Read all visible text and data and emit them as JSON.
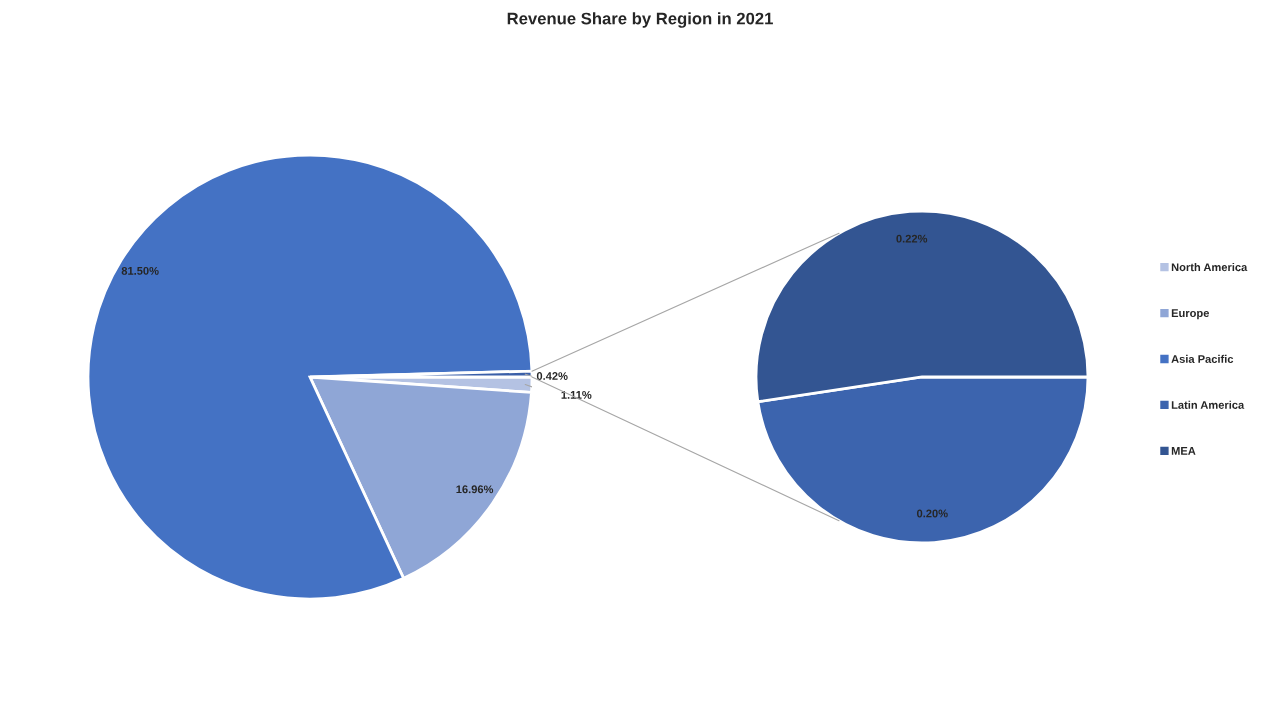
{
  "chart_data": [
    {
      "type": "pie",
      "title": "Revenue Share by Region in 2021",
      "categories": [
        "North America",
        "Europe",
        "Asia Pacific",
        null
      ],
      "values": [
        1.11,
        16.96,
        81.5,
        0.42
      ],
      "colors": [
        "#b4c2e3",
        "#8fa6d6",
        "#4472c4",
        "#3a5fa8"
      ],
      "value_labels": [
        "1.11%",
        "16.96%",
        "81.50%",
        "0.42%"
      ],
      "legend": "right"
    },
    {
      "type": "pie",
      "categories": [
        "Latin America",
        "MEA"
      ],
      "values": [
        0.2,
        0.22
      ],
      "colors": [
        "#3c64ae",
        "#335592"
      ],
      "value_labels": [
        "0.20%",
        "0.22%"
      ]
    }
  ]
}
